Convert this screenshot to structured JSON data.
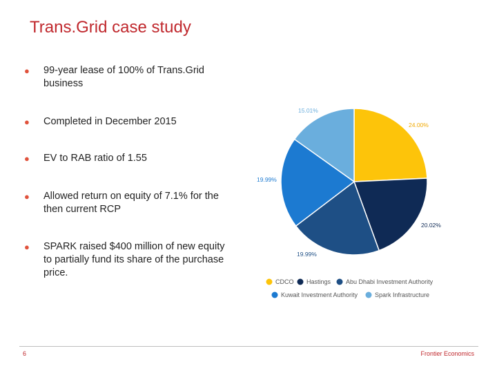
{
  "slide": {
    "title": "Trans.Grid case study",
    "bullets": [
      "99-year lease of 100% of Trans.Grid business",
      "Completed in December 2015",
      "EV to RAB ratio of 1.55",
      "Allowed return on equity of 7.1% for the then current RCP",
      "SPARK raised $400 million of new equity to partially fund its share of the purchase price."
    ],
    "bullet_glyph": "●",
    "page_number": "6",
    "brand": "Frontier Economics"
  },
  "colors": {
    "title": "#c0282d",
    "bullet_dot": "#e0523c"
  },
  "chart_data": {
    "type": "pie",
    "slices": [
      {
        "name": "CDCO",
        "value": 24.0,
        "label": "24.00%",
        "color": "#fdc40a",
        "label_color": "#f0a800"
      },
      {
        "name": "Hastings",
        "value": 20.02,
        "label": "20.02%",
        "color": "#0f2a55",
        "label_color": "#0f2a55"
      },
      {
        "name": "Abu Dhabi Investment Authority",
        "value": 19.99,
        "label": "19.99%",
        "color": "#1e4f85",
        "label_color": "#1e4f85"
      },
      {
        "name": "Kuwait Investment Authority",
        "value": 19.99,
        "label": "19.99%",
        "color": "#1c7ad1",
        "label_color": "#1c7ad1"
      },
      {
        "name": "Spark Infrastructure",
        "value": 15.01,
        "label": "15.01%",
        "color": "#6aaedd",
        "label_color": "#6aaedd"
      }
    ],
    "legend_position": "bottom"
  }
}
